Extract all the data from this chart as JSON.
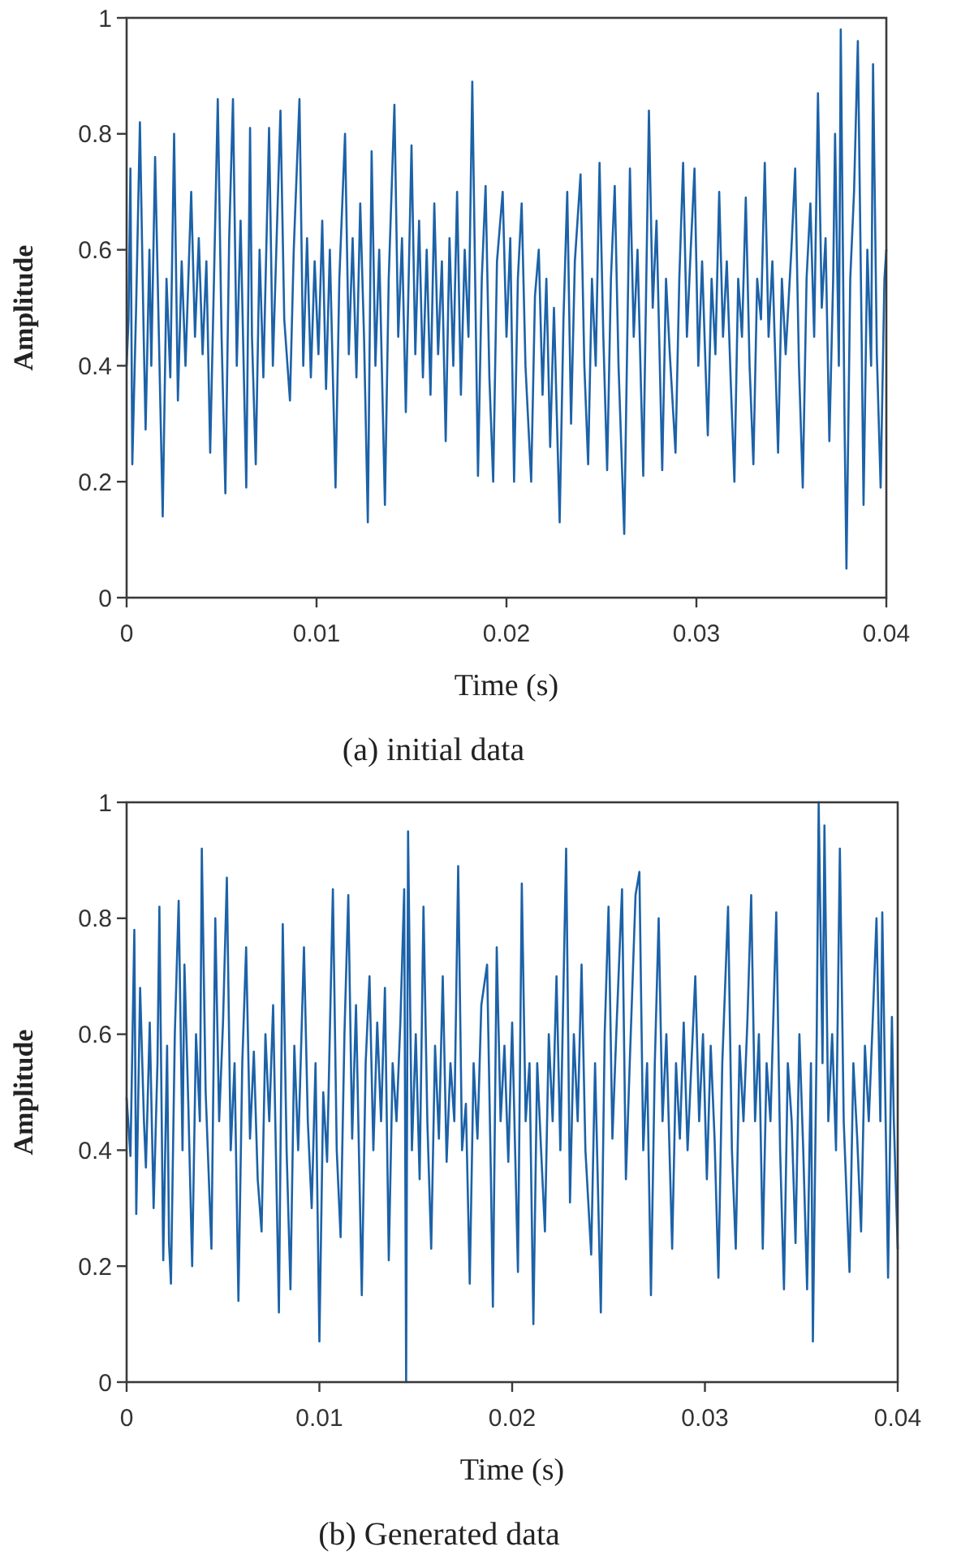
{
  "chart_data": [
    {
      "type": "line",
      "xlabel": "Time (s)",
      "ylabel": "Amplitude",
      "annotations": [
        "(a) initial data"
      ],
      "color": "#1c62a8",
      "xlim": [
        0,
        0.04
      ],
      "ylim": [
        0,
        1
      ],
      "xticks": [
        0,
        0.01,
        0.02,
        0.03,
        0.04
      ],
      "yticks": [
        0,
        0.2,
        0.4,
        0.6,
        0.8,
        1
      ],
      "x": [
        0,
        0.0001,
        0.0002,
        0.0003,
        0.0005,
        0.0007,
        0.0009,
        0.001,
        0.0012,
        0.0013,
        0.0015,
        0.0017,
        0.0019,
        0.0021,
        0.0023,
        0.0025,
        0.0027,
        0.0029,
        0.0031,
        0.0034,
        0.0036,
        0.0038,
        0.004,
        0.0042,
        0.0044,
        0.0046,
        0.0048,
        0.005,
        0.0052,
        0.0054,
        0.0056,
        0.0058,
        0.006,
        0.0063,
        0.0065,
        0.0066,
        0.0068,
        0.007,
        0.0072,
        0.0075,
        0.0077,
        0.0079,
        0.0081,
        0.0083,
        0.0086,
        0.0088,
        0.0091,
        0.0093,
        0.0095,
        0.0097,
        0.0099,
        0.0101,
        0.0103,
        0.0105,
        0.0107,
        0.011,
        0.0112,
        0.0115,
        0.0117,
        0.0119,
        0.0121,
        0.0123,
        0.0125,
        0.0127,
        0.0129,
        0.0131,
        0.0133,
        0.0136,
        0.0138,
        0.0141,
        0.0143,
        0.0145,
        0.0147,
        0.015,
        0.0152,
        0.0154,
        0.0156,
        0.0158,
        0.016,
        0.0162,
        0.0164,
        0.0166,
        0.0168,
        0.017,
        0.0172,
        0.0174,
        0.0176,
        0.0178,
        0.018,
        0.0182,
        0.0185,
        0.0187,
        0.0189,
        0.0191,
        0.0193,
        0.0195,
        0.0198,
        0.02,
        0.0202,
        0.0204,
        0.0206,
        0.0208,
        0.021,
        0.0213,
        0.0215,
        0.0217,
        0.0219,
        0.0221,
        0.0223,
        0.0225,
        0.0228,
        0.023,
        0.0232,
        0.0234,
        0.0236,
        0.0239,
        0.0241,
        0.0243,
        0.0245,
        0.0247,
        0.0249,
        0.0251,
        0.0253,
        0.0255,
        0.0257,
        0.0259,
        0.0262,
        0.0265,
        0.0267,
        0.0269,
        0.0272,
        0.0275,
        0.0277,
        0.0279,
        0.0282,
        0.0284,
        0.0286,
        0.0289,
        0.0291,
        0.0293,
        0.0295,
        0.0297,
        0.0299,
        0.0301,
        0.0303,
        0.0306,
        0.0308,
        0.031,
        0.0312,
        0.0314,
        0.0316,
        0.0318,
        0.032,
        0.0322,
        0.0324,
        0.0326,
        0.0328,
        0.033,
        0.0332,
        0.0334,
        0.0336,
        0.0338,
        0.034,
        0.0343,
        0.0345,
        0.0347,
        0.035,
        0.0352,
        0.0354,
        0.0356,
        0.0358,
        0.036,
        0.0362,
        0.0364,
        0.0366,
        0.0368,
        0.037,
        0.0372,
        0.0373,
        0.0375,
        0.0376,
        0.0378,
        0.0379,
        0.0381,
        0.0383,
        0.0385,
        0.0387,
        0.0388,
        0.039,
        0.0392,
        0.0393,
        0.0395,
        0.0397,
        0.0399,
        0.04
      ],
      "values": [
        0.4,
        0.48,
        0.74,
        0.23,
        0.5,
        0.82,
        0.45,
        0.29,
        0.6,
        0.4,
        0.76,
        0.45,
        0.14,
        0.55,
        0.38,
        0.8,
        0.34,
        0.58,
        0.4,
        0.7,
        0.45,
        0.62,
        0.42,
        0.58,
        0.25,
        0.55,
        0.86,
        0.45,
        0.18,
        0.62,
        0.86,
        0.4,
        0.65,
        0.19,
        0.81,
        0.45,
        0.23,
        0.6,
        0.38,
        0.81,
        0.4,
        0.62,
        0.84,
        0.48,
        0.34,
        0.6,
        0.86,
        0.4,
        0.62,
        0.38,
        0.58,
        0.42,
        0.65,
        0.36,
        0.6,
        0.19,
        0.55,
        0.8,
        0.42,
        0.62,
        0.38,
        0.68,
        0.45,
        0.13,
        0.77,
        0.4,
        0.6,
        0.16,
        0.55,
        0.85,
        0.45,
        0.62,
        0.32,
        0.78,
        0.42,
        0.65,
        0.38,
        0.6,
        0.35,
        0.68,
        0.42,
        0.58,
        0.27,
        0.62,
        0.4,
        0.7,
        0.35,
        0.6,
        0.45,
        0.89,
        0.21,
        0.55,
        0.71,
        0.38,
        0.2,
        0.58,
        0.7,
        0.45,
        0.62,
        0.2,
        0.55,
        0.68,
        0.4,
        0.2,
        0.52,
        0.6,
        0.35,
        0.55,
        0.26,
        0.5,
        0.13,
        0.48,
        0.7,
        0.3,
        0.58,
        0.73,
        0.4,
        0.23,
        0.55,
        0.4,
        0.75,
        0.45,
        0.22,
        0.55,
        0.71,
        0.4,
        0.11,
        0.74,
        0.45,
        0.6,
        0.21,
        0.84,
        0.5,
        0.65,
        0.22,
        0.55,
        0.42,
        0.25,
        0.55,
        0.75,
        0.45,
        0.6,
        0.74,
        0.4,
        0.58,
        0.28,
        0.55,
        0.42,
        0.7,
        0.45,
        0.58,
        0.38,
        0.2,
        0.55,
        0.45,
        0.69,
        0.4,
        0.23,
        0.55,
        0.48,
        0.75,
        0.45,
        0.58,
        0.25,
        0.55,
        0.42,
        0.6,
        0.74,
        0.4,
        0.19,
        0.55,
        0.68,
        0.45,
        0.87,
        0.5,
        0.62,
        0.27,
        0.55,
        0.8,
        0.4,
        0.98,
        0.3,
        0.05,
        0.55,
        0.7,
        0.96,
        0.45,
        0.16,
        0.6,
        0.4,
        0.92,
        0.42,
        0.19,
        0.55,
        0.6
      ]
    },
    {
      "type": "line",
      "xlabel": "Time (s)",
      "ylabel": "Amplitude",
      "annotations": [
        "(b) Generated data"
      ],
      "color": "#1c62a8",
      "xlim": [
        0,
        0.04
      ],
      "ylim": [
        0,
        1
      ],
      "xticks": [
        0,
        0.01,
        0.02,
        0.03,
        0.04
      ],
      "yticks": [
        0,
        0.2,
        0.4,
        0.6,
        0.8,
        1
      ],
      "x": [
        0,
        0.0002,
        0.0004,
        0.0005,
        0.0007,
        0.0009,
        0.001,
        0.0012,
        0.0014,
        0.0016,
        0.0017,
        0.0019,
        0.0021,
        0.0022,
        0.0023,
        0.0025,
        0.0027,
        0.0029,
        0.003,
        0.0032,
        0.0034,
        0.0036,
        0.0038,
        0.0039,
        0.0041,
        0.0044,
        0.0046,
        0.0048,
        0.005,
        0.0052,
        0.0054,
        0.0056,
        0.0058,
        0.006,
        0.0062,
        0.0064,
        0.0066,
        0.0068,
        0.007,
        0.0072,
        0.0074,
        0.0076,
        0.0079,
        0.0081,
        0.0083,
        0.0085,
        0.0087,
        0.0089,
        0.0092,
        0.0094,
        0.0096,
        0.0098,
        0.01,
        0.0102,
        0.0104,
        0.0107,
        0.0109,
        0.0111,
        0.0113,
        0.0115,
        0.0117,
        0.0119,
        0.0122,
        0.0124,
        0.0126,
        0.0128,
        0.013,
        0.0132,
        0.0134,
        0.0136,
        0.0138,
        0.014,
        0.0142,
        0.0144,
        0.0145,
        0.0146,
        0.0148,
        0.015,
        0.0152,
        0.0154,
        0.0156,
        0.0158,
        0.016,
        0.0162,
        0.0164,
        0.0166,
        0.0168,
        0.017,
        0.0172,
        0.0174,
        0.0176,
        0.0178,
        0.018,
        0.0182,
        0.0184,
        0.0187,
        0.0189,
        0.019,
        0.0192,
        0.0194,
        0.0196,
        0.0198,
        0.02,
        0.0203,
        0.0205,
        0.0207,
        0.0209,
        0.0211,
        0.0213,
        0.0215,
        0.0217,
        0.0219,
        0.0221,
        0.0223,
        0.0225,
        0.0228,
        0.023,
        0.0232,
        0.0234,
        0.0236,
        0.0238,
        0.0241,
        0.0243,
        0.0246,
        0.0248,
        0.025,
        0.0252,
        0.0254,
        0.0257,
        0.0259,
        0.0261,
        0.0264,
        0.0266,
        0.0268,
        0.027,
        0.0272,
        0.0274,
        0.0276,
        0.0278,
        0.028,
        0.0283,
        0.0285,
        0.0287,
        0.0289,
        0.0291,
        0.0293,
        0.0295,
        0.0297,
        0.0299,
        0.0301,
        0.0303,
        0.0305,
        0.0307,
        0.0309,
        0.0312,
        0.0314,
        0.0316,
        0.0318,
        0.032,
        0.0322,
        0.0324,
        0.0326,
        0.0328,
        0.033,
        0.0332,
        0.0334,
        0.0337,
        0.0339,
        0.0341,
        0.0343,
        0.0345,
        0.0347,
        0.0349,
        0.0351,
        0.0353,
        0.0355,
        0.0356,
        0.0358,
        0.0359,
        0.0361,
        0.0362,
        0.0364,
        0.0366,
        0.0368,
        0.037,
        0.0372,
        0.0375,
        0.0377,
        0.0379,
        0.0381,
        0.0383,
        0.0385,
        0.0387,
        0.0389,
        0.0391,
        0.0392,
        0.0394,
        0.0395,
        0.0397,
        0.0398,
        0.04
      ],
      "values": [
        0.49,
        0.39,
        0.78,
        0.29,
        0.68,
        0.45,
        0.37,
        0.62,
        0.3,
        0.55,
        0.82,
        0.21,
        0.58,
        0.24,
        0.17,
        0.6,
        0.83,
        0.4,
        0.72,
        0.48,
        0.2,
        0.6,
        0.45,
        0.92,
        0.5,
        0.23,
        0.8,
        0.45,
        0.62,
        0.87,
        0.4,
        0.55,
        0.14,
        0.55,
        0.75,
        0.42,
        0.57,
        0.35,
        0.26,
        0.6,
        0.45,
        0.65,
        0.12,
        0.79,
        0.4,
        0.16,
        0.58,
        0.4,
        0.75,
        0.45,
        0.3,
        0.55,
        0.07,
        0.5,
        0.38,
        0.85,
        0.4,
        0.25,
        0.6,
        0.84,
        0.42,
        0.65,
        0.15,
        0.55,
        0.7,
        0.4,
        0.62,
        0.45,
        0.68,
        0.21,
        0.55,
        0.45,
        0.62,
        0.85,
        0,
        0.95,
        0.4,
        0.6,
        0.35,
        0.82,
        0.45,
        0.23,
        0.58,
        0.42,
        0.7,
        0.38,
        0.55,
        0.45,
        0.89,
        0.4,
        0.48,
        0.17,
        0.55,
        0.42,
        0.65,
        0.72,
        0.35,
        0.13,
        0.75,
        0.45,
        0.58,
        0.38,
        0.62,
        0.19,
        0.86,
        0.45,
        0.55,
        0.1,
        0.55,
        0.4,
        0.26,
        0.6,
        0.45,
        0.7,
        0.4,
        0.92,
        0.31,
        0.6,
        0.45,
        0.72,
        0.4,
        0.22,
        0.55,
        0.12,
        0.6,
        0.82,
        0.42,
        0.6,
        0.85,
        0.35,
        0.55,
        0.84,
        0.88,
        0.4,
        0.55,
        0.15,
        0.55,
        0.8,
        0.45,
        0.6,
        0.23,
        0.55,
        0.42,
        0.62,
        0.4,
        0.55,
        0.7,
        0.45,
        0.6,
        0.35,
        0.58,
        0.42,
        0.18,
        0.55,
        0.82,
        0.4,
        0.23,
        0.58,
        0.45,
        0.62,
        0.84,
        0.45,
        0.6,
        0.23,
        0.55,
        0.45,
        0.81,
        0.4,
        0.16,
        0.55,
        0.45,
        0.24,
        0.6,
        0.4,
        0.16,
        0.55,
        0.07,
        0.6,
        1,
        0.55,
        0.96,
        0.45,
        0.6,
        0.4,
        0.92,
        0.45,
        0.19,
        0.55,
        0.42,
        0.26,
        0.58,
        0.45,
        0.62,
        0.8,
        0.45,
        0.81,
        0.4,
        0.18,
        0.63,
        0.45,
        0.23
      ]
    }
  ]
}
